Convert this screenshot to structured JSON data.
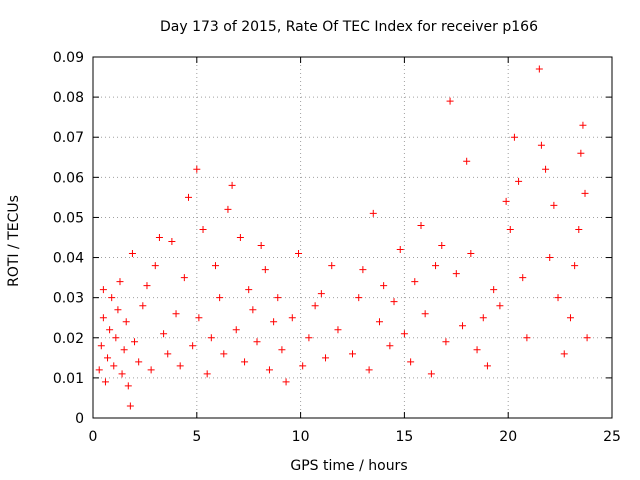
{
  "chart_data": {
    "type": "scatter",
    "title": "Day 173 of 2015, Rate Of TEC Index for receiver p166",
    "xlabel": "GPS time / hours",
    "ylabel": "ROTI / TECUs",
    "xlim": [
      0,
      25
    ],
    "ylim": [
      0,
      0.09
    ],
    "x_ticks": [
      "0",
      "5",
      "10",
      "15",
      "20",
      "25"
    ],
    "y_ticks": [
      "0",
      "0.01",
      "0.02",
      "0.03",
      "0.04",
      "0.05",
      "0.06",
      "0.07",
      "0.08",
      "0.09"
    ],
    "grid": true,
    "marker": "+",
    "color": "#ff0000",
    "series": [
      {
        "points": [
          [
            0.3,
            0.012
          ],
          [
            0.4,
            0.018
          ],
          [
            0.5,
            0.025
          ],
          [
            0.5,
            0.032
          ],
          [
            0.6,
            0.009
          ],
          [
            0.7,
            0.015
          ],
          [
            0.8,
            0.022
          ],
          [
            0.9,
            0.03
          ],
          [
            1.0,
            0.013
          ],
          [
            1.1,
            0.02
          ],
          [
            1.2,
            0.027
          ],
          [
            1.3,
            0.034
          ],
          [
            1.4,
            0.011
          ],
          [
            1.5,
            0.017
          ],
          [
            1.6,
            0.024
          ],
          [
            1.7,
            0.008
          ],
          [
            1.8,
            0.003
          ],
          [
            1.9,
            0.041
          ],
          [
            2.0,
            0.019
          ],
          [
            2.2,
            0.014
          ],
          [
            2.4,
            0.028
          ],
          [
            2.6,
            0.033
          ],
          [
            2.8,
            0.012
          ],
          [
            3.0,
            0.038
          ],
          [
            3.2,
            0.045
          ],
          [
            3.4,
            0.021
          ],
          [
            3.6,
            0.016
          ],
          [
            3.8,
            0.044
          ],
          [
            4.0,
            0.026
          ],
          [
            4.2,
            0.013
          ],
          [
            4.4,
            0.035
          ],
          [
            4.6,
            0.055
          ],
          [
            4.8,
            0.018
          ],
          [
            5.0,
            0.062
          ],
          [
            5.1,
            0.025
          ],
          [
            5.3,
            0.047
          ],
          [
            5.5,
            0.011
          ],
          [
            5.7,
            0.02
          ],
          [
            5.9,
            0.038
          ],
          [
            6.1,
            0.03
          ],
          [
            6.3,
            0.016
          ],
          [
            6.5,
            0.052
          ],
          [
            6.7,
            0.058
          ],
          [
            6.9,
            0.022
          ],
          [
            7.1,
            0.045
          ],
          [
            7.3,
            0.014
          ],
          [
            7.5,
            0.032
          ],
          [
            7.7,
            0.027
          ],
          [
            7.9,
            0.019
          ],
          [
            8.1,
            0.043
          ],
          [
            8.3,
            0.037
          ],
          [
            8.5,
            0.012
          ],
          [
            8.7,
            0.024
          ],
          [
            8.9,
            0.03
          ],
          [
            9.1,
            0.017
          ],
          [
            9.3,
            0.009
          ],
          [
            9.6,
            0.025
          ],
          [
            9.9,
            0.041
          ],
          [
            10.1,
            0.013
          ],
          [
            10.4,
            0.02
          ],
          [
            10.7,
            0.028
          ],
          [
            11.0,
            0.031
          ],
          [
            11.2,
            0.015
          ],
          [
            11.5,
            0.038
          ],
          [
            11.8,
            0.022
          ],
          [
            12.5,
            0.016
          ],
          [
            12.8,
            0.03
          ],
          [
            13.0,
            0.037
          ],
          [
            13.3,
            0.012
          ],
          [
            13.5,
            0.051
          ],
          [
            13.8,
            0.024
          ],
          [
            14.0,
            0.033
          ],
          [
            14.3,
            0.018
          ],
          [
            14.5,
            0.029
          ],
          [
            14.8,
            0.042
          ],
          [
            15.0,
            0.021
          ],
          [
            15.3,
            0.014
          ],
          [
            15.5,
            0.034
          ],
          [
            15.8,
            0.048
          ],
          [
            16.0,
            0.026
          ],
          [
            16.3,
            0.011
          ],
          [
            16.5,
            0.038
          ],
          [
            16.8,
            0.043
          ],
          [
            17.0,
            0.019
          ],
          [
            17.2,
            0.079
          ],
          [
            17.5,
            0.036
          ],
          [
            17.8,
            0.023
          ],
          [
            18.0,
            0.064
          ],
          [
            18.2,
            0.041
          ],
          [
            18.5,
            0.017
          ],
          [
            18.8,
            0.025
          ],
          [
            19.0,
            0.013
          ],
          [
            19.3,
            0.032
          ],
          [
            19.6,
            0.028
          ],
          [
            19.9,
            0.054
          ],
          [
            20.1,
            0.047
          ],
          [
            20.3,
            0.07
          ],
          [
            20.5,
            0.059
          ],
          [
            20.7,
            0.035
          ],
          [
            20.9,
            0.02
          ],
          [
            21.5,
            0.087
          ],
          [
            21.6,
            0.068
          ],
          [
            21.8,
            0.062
          ],
          [
            22.0,
            0.04
          ],
          [
            22.2,
            0.053
          ],
          [
            22.4,
            0.03
          ],
          [
            22.7,
            0.016
          ],
          [
            23.0,
            0.025
          ],
          [
            23.2,
            0.038
          ],
          [
            23.4,
            0.047
          ],
          [
            23.5,
            0.066
          ],
          [
            23.6,
            0.073
          ],
          [
            23.7,
            0.056
          ],
          [
            23.8,
            0.02
          ]
        ]
      }
    ]
  }
}
